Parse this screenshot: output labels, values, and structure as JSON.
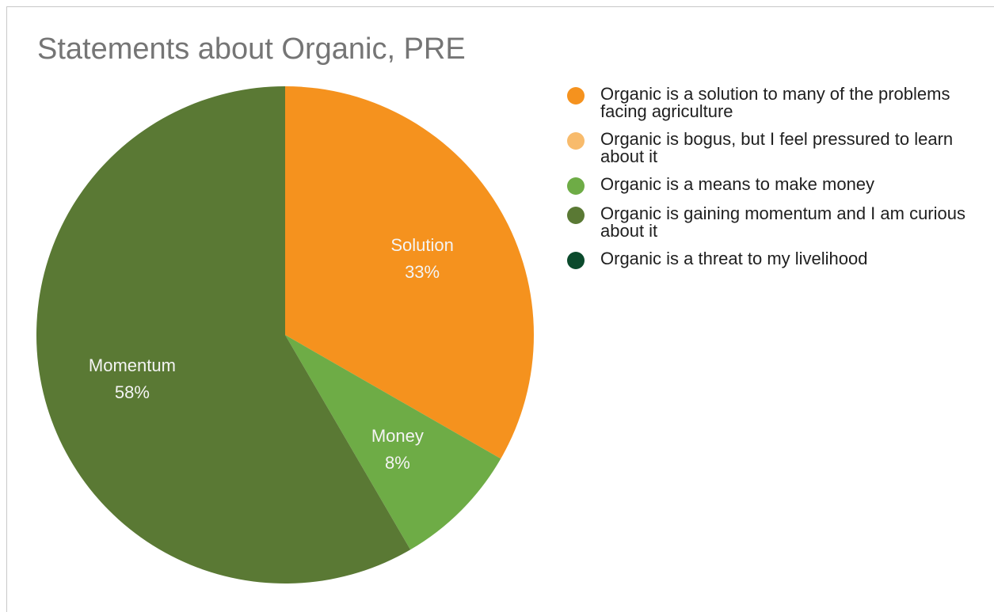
{
  "chart_data": {
    "type": "pie",
    "title": "Statements about Organic, PRE",
    "legend_position": "right",
    "start_angle_deg": 0,
    "direction": "clockwise",
    "slices": [
      {
        "key": "solution",
        "name": "Organic is a solution to many of the problems facing agriculture",
        "label": "Solution",
        "percent_label": "33%",
        "value": 33.3,
        "color": "#F5921E"
      },
      {
        "key": "bogus",
        "name": "Organic is bogus, but I feel pressured to learn about it",
        "label": "",
        "percent_label": "",
        "value": 0,
        "color": "#F8BB6C"
      },
      {
        "key": "money",
        "name": "Organic is a means to make money",
        "label": "Money",
        "percent_label": "8%",
        "value": 8.3,
        "color": "#6EAC46"
      },
      {
        "key": "momentum",
        "name": "Organic is gaining momentum and I am curious about it",
        "label": "Momentum",
        "percent_label": "58%",
        "value": 58.4,
        "color": "#5A7934"
      },
      {
        "key": "threat",
        "name": "Organic is a threat to my livelihood",
        "label": "",
        "percent_label": "",
        "value": 0,
        "color": "#0B4A2C"
      }
    ]
  }
}
